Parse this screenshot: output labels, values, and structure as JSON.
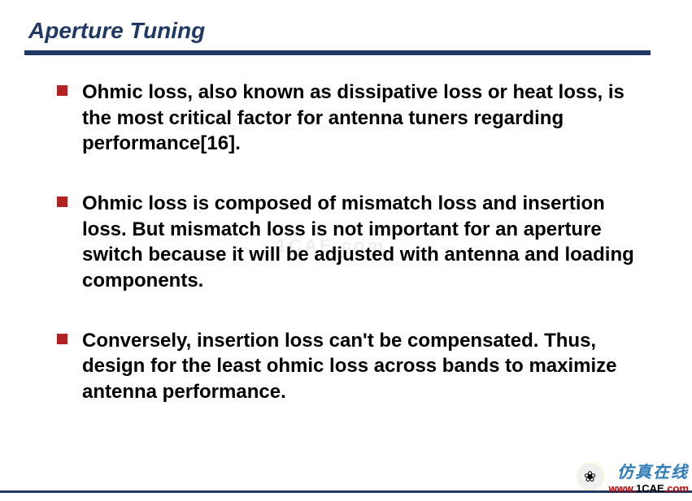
{
  "title": "Aperture Tuning",
  "title_color": "#203864",
  "title_underline_color": "#203864",
  "bullet_color": "#b22222",
  "text_color": "#000000",
  "bullets": [
    "Ohmic loss, also known as dissipative loss or heat loss, is the most critical factor for antenna tuners regarding performance[16].",
    "Ohmic loss is composed of mismatch loss and insertion loss. But mismatch loss is not important for an aperture switch because it will be adjusted with antenna and loading components.",
    "Conversely, insertion loss can't be compensated. Thus, design for the least ohmic loss across bands to maximize antenna performance."
  ],
  "font_size_title": 28,
  "font_size_body": 24,
  "background_color": "#ffffff",
  "watermark": {
    "cn_text": "仿真在线",
    "url_www": "www.",
    "url_domain": "1CAE",
    "url_com": ".com",
    "cn_color": "#2e7cb8",
    "url_www_color": "#c00000",
    "url_domain_color": "#000000",
    "url_com_color": "#c00000",
    "icon_glyph": "❀"
  },
  "center_watermark": "1CAE.com"
}
